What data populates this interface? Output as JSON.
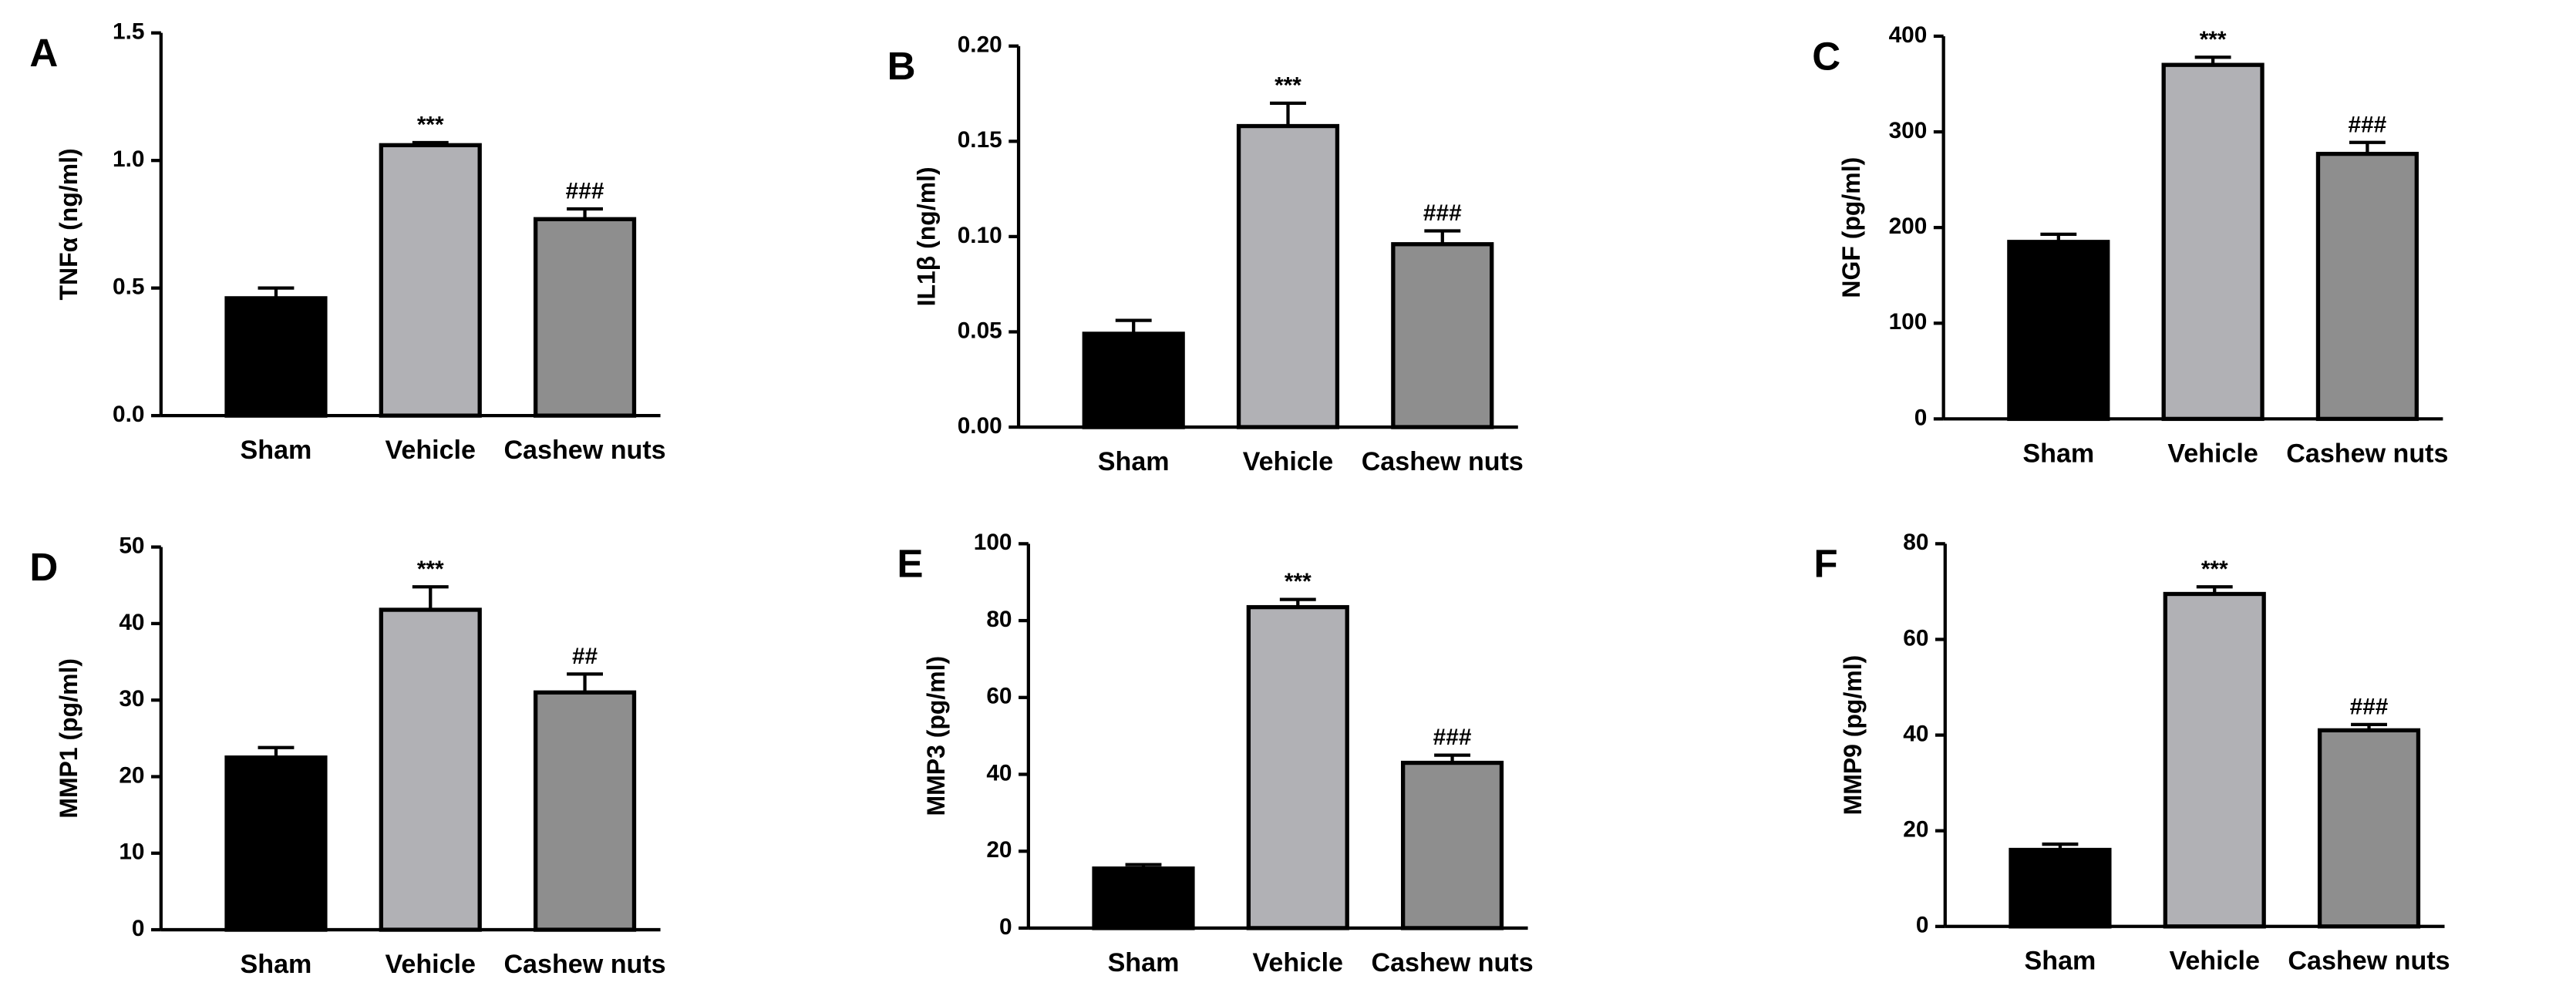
{
  "chart_data": [
    {
      "type": "bar",
      "panel": "A",
      "ylabel": "TNFα (ng/ml)",
      "categories": [
        "Sham",
        "Vehicle",
        "Cashew nuts"
      ],
      "values": [
        0.46,
        1.06,
        0.77
      ],
      "errors": [
        0.04,
        0.01,
        0.04
      ],
      "annotations": [
        null,
        "***",
        "###"
      ],
      "colors": [
        "#000000",
        "#b1b1b5",
        "#8e8e8e"
      ],
      "ylim": [
        0,
        1.5
      ],
      "yticks": [
        {
          "value": 0,
          "label": "0.0"
        },
        {
          "value": 0.5,
          "label": "0.5"
        },
        {
          "value": 1,
          "label": "1.0"
        },
        1.5
      ]
    },
    {
      "type": "bar",
      "panel": "B",
      "ylabel": "IL1β (ng/ml)",
      "categories": [
        "Sham",
        "Vehicle",
        "Cashew nuts"
      ],
      "values": [
        0.049,
        0.158,
        0.096
      ],
      "errors": [
        0.007,
        0.012,
        0.007
      ],
      "annotations": [
        null,
        "***",
        "###"
      ],
      "colors": [
        "#000000",
        "#b1b1b5",
        "#8e8e8e"
      ],
      "ylim": [
        0,
        0.2
      ],
      "yticks": [
        {
          "value": 0,
          "label": "0.00"
        },
        0.05,
        {
          "value": 0.1,
          "label": "0.10"
        },
        0.15,
        {
          "value": 0.2,
          "label": "0.20"
        }
      ]
    },
    {
      "type": "bar",
      "panel": "C",
      "ylabel": "NGF (pg/ml)",
      "categories": [
        "Sham",
        "Vehicle",
        "Cashew nuts"
      ],
      "values": [
        185,
        370,
        277
      ],
      "errors": [
        8,
        8,
        12
      ],
      "annotations": [
        null,
        "***",
        "###"
      ],
      "colors": [
        "#000000",
        "#b1b1b5",
        "#8e8e8e"
      ],
      "ylim": [
        0,
        400
      ],
      "yticks": [
        0,
        100,
        200,
        300,
        400
      ]
    },
    {
      "type": "bar",
      "panel": "D",
      "ylabel": "MMP1 (pg/ml)",
      "categories": [
        "Sham",
        "Vehicle",
        "Cashew nuts"
      ],
      "values": [
        22.5,
        41.8,
        31
      ],
      "errors": [
        1.3,
        3,
        2.4
      ],
      "annotations": [
        null,
        "***",
        "##"
      ],
      "colors": [
        "#000000",
        "#b1b1b5",
        "#8e8e8e"
      ],
      "ylim": [
        0,
        50
      ],
      "yticks": [
        0,
        10,
        20,
        30,
        40,
        50
      ]
    },
    {
      "type": "bar",
      "panel": "E",
      "ylabel": "MMP3 (pg/ml)",
      "categories": [
        "Sham",
        "Vehicle",
        "Cashew nuts"
      ],
      "values": [
        15.5,
        83.5,
        43
      ],
      "errors": [
        1,
        2,
        2
      ],
      "annotations": [
        null,
        "***",
        "###"
      ],
      "colors": [
        "#000000",
        "#b1b1b5",
        "#8e8e8e"
      ],
      "ylim": [
        0,
        100
      ],
      "yticks": [
        0,
        20,
        40,
        60,
        80,
        100
      ]
    },
    {
      "type": "bar",
      "panel": "F",
      "ylabel": "MMP9 (pg/ml)",
      "categories": [
        "Sham",
        "Vehicle",
        "Cashew nuts"
      ],
      "values": [
        16,
        69.5,
        41
      ],
      "errors": [
        1.2,
        1.5,
        1.2
      ],
      "annotations": [
        null,
        "***",
        "###"
      ],
      "colors": [
        "#000000",
        "#b1b1b5",
        "#8e8e8e"
      ],
      "ylim": [
        0,
        80
      ],
      "yticks": [
        0,
        20,
        40,
        60,
        80
      ]
    }
  ]
}
